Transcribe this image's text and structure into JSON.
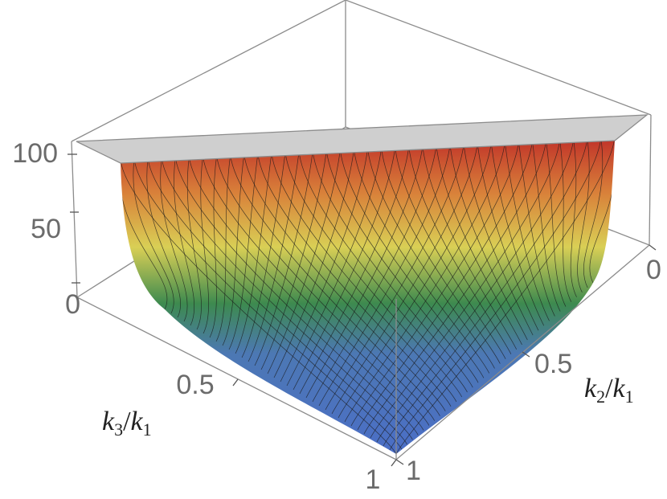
{
  "chart_data": {
    "type": "surface3d",
    "x_axis": {
      "label_var": "k",
      "label_sub": "3",
      "label_den_var": "k",
      "label_den_sub": "1",
      "ticks": [
        "0.5",
        "1"
      ],
      "range": [
        0,
        1
      ]
    },
    "y_axis": {
      "label_var": "k",
      "label_sub": "2",
      "label_den_var": "k",
      "label_den_sub": "1",
      "ticks": [
        "0",
        "0.5",
        "1"
      ],
      "range": [
        0,
        1
      ]
    },
    "z_axis": {
      "ticks": [
        "0",
        "50",
        "100"
      ],
      "range": [
        0,
        100
      ]
    },
    "domain": "k2/k1 + k3/k1 >= 1 (triangle, clipped at 100)",
    "colormap": [
      "#4b6fc4",
      "#2e7d4a",
      "#d7c23f",
      "#c23a2a"
    ],
    "clip_color": "#cfcfcf",
    "surface_samples": [
      {
        "k3": 0.5,
        "k2": 0.5,
        "value": 0
      },
      {
        "k3": 0.75,
        "k2": 0.75,
        "value": 0
      },
      {
        "k3": 1.0,
        "k2": 1.0,
        "value": 0
      },
      {
        "k3": 1.0,
        "k2": 0.05,
        "value": 100
      },
      {
        "k3": 0.05,
        "k2": 1.0,
        "value": 100
      }
    ],
    "grid": false,
    "mesh": true
  }
}
